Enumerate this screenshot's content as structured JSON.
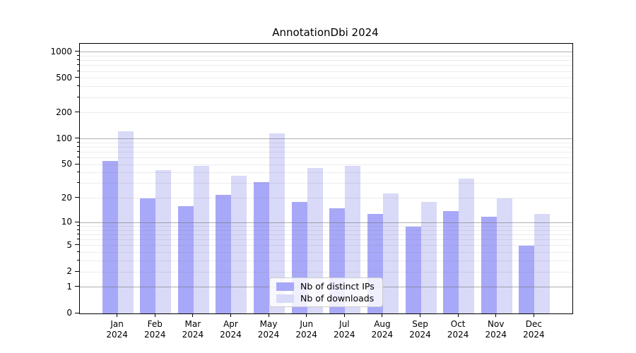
{
  "chart_data": {
    "type": "bar",
    "title": "AnnotationDbi 2024",
    "year": "2024",
    "months": [
      "Jan",
      "Feb",
      "Mar",
      "Apr",
      "May",
      "Jun",
      "Jul",
      "Aug",
      "Sep",
      "Oct",
      "Nov",
      "Dec"
    ],
    "series": [
      {
        "name": "Nb of distinct IPs",
        "color": "#a8a8f8",
        "values": [
          55,
          20,
          16,
          22,
          31,
          18,
          15,
          13,
          9,
          14,
          12,
          5
        ]
      },
      {
        "name": "Nb of downloads",
        "color": "#d9d9f8",
        "values": [
          123,
          43,
          48,
          37,
          115,
          46,
          48,
          23,
          18,
          34,
          20,
          13
        ]
      }
    ],
    "y_scale": "log10(value+1)",
    "y_ticks_labeled": [
      0,
      1,
      2,
      5,
      10,
      20,
      50,
      100,
      200,
      500,
      1000
    ],
    "y_minor_ticks": [
      3,
      4,
      6,
      7,
      8,
      9,
      30,
      40,
      60,
      70,
      80,
      90,
      300,
      400,
      600,
      700,
      800,
      900
    ],
    "ylim": [
      0,
      1246
    ],
    "grid": true,
    "legend_position": "lower center",
    "colors": {
      "major_grid": "#b1b1b1",
      "minor_grid": "#ececec",
      "axis": "#000000",
      "background": "#ffffff",
      "text": "#000000"
    }
  }
}
